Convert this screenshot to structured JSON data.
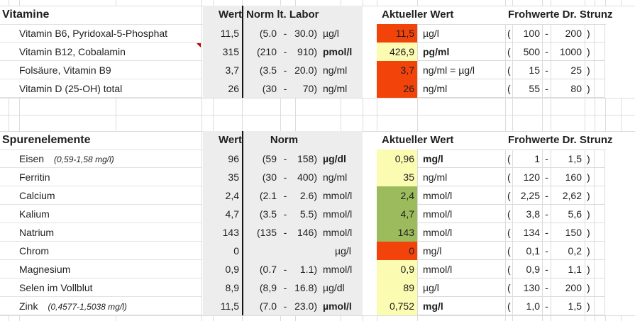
{
  "colors": {
    "red": "#f2430b",
    "yellow": "#fbfbb2",
    "green": "#9cbb5c",
    "comment_marker": "#bf0000",
    "flag_marker": "#1e7a1e",
    "band_gray": "#ededed"
  },
  "sections": [
    {
      "title": "Vitamine",
      "headers": {
        "wert": "Wert",
        "norm": "Norm lt. Labor",
        "aktuell": "Aktueller Wert",
        "froh": "Frohwerte Dr. Strunz"
      },
      "rows": [
        {
          "name": "Vitamin B6, Pyridoxal-5-Phosphat",
          "note": "",
          "wert": "11,5",
          "norm_low": "(5.0",
          "norm_dash": "-",
          "norm_high": "30.0)",
          "norm_unit": "µg/l",
          "norm_unit_bold": false,
          "aval": "11,5",
          "aval_bg": "red",
          "aval_flag": false,
          "aunit": "µg/l",
          "aunit_bold": false,
          "froh_open": "(",
          "froh_low": "100",
          "froh_dash": "-",
          "froh_high": "200",
          "froh_close": ")",
          "name_comment": false
        },
        {
          "name": "Vitamin B12, Cobalamin",
          "note": "",
          "wert": "315",
          "norm_low": "(210",
          "norm_dash": "-",
          "norm_high": "910)",
          "norm_unit": "pmol/l",
          "norm_unit_bold": true,
          "aval": "426,9",
          "aval_bg": "yellow",
          "aval_flag": true,
          "aunit": "pg/ml",
          "aunit_bold": true,
          "froh_open": "(",
          "froh_low": "500",
          "froh_dash": "-",
          "froh_high": "1000",
          "froh_close": ")",
          "name_comment": true
        },
        {
          "name": "Folsäure, Vitamin B9",
          "note": "",
          "wert": "3,7",
          "norm_low": "(3.5",
          "norm_dash": "-",
          "norm_high": "20.0)",
          "norm_unit": "ng/ml",
          "norm_unit_bold": false,
          "aval": "3,7",
          "aval_bg": "red",
          "aval_flag": false,
          "aunit": "ng/ml = µg/l",
          "aunit_bold": false,
          "froh_open": "(",
          "froh_low": "15",
          "froh_dash": "-",
          "froh_high": "25",
          "froh_close": ")",
          "name_comment": false
        },
        {
          "name": "Vitamin D (25-OH) total",
          "note": "",
          "wert": "26",
          "norm_low": "(30",
          "norm_dash": "-",
          "norm_high": "70)",
          "norm_unit": "ng/ml",
          "norm_unit_bold": false,
          "aval": "26",
          "aval_bg": "red",
          "aval_flag": false,
          "aunit": "ng/ml",
          "aunit_bold": false,
          "froh_open": "(",
          "froh_low": "55",
          "froh_dash": "-",
          "froh_high": "80",
          "froh_close": ")",
          "name_comment": false
        }
      ]
    },
    {
      "title": "Spurenelemente",
      "headers": {
        "wert": "Wert",
        "norm": "Norm",
        "aktuell": "Aktueller Wert",
        "froh": "Frohwerte Dr. Strunz"
      },
      "rows": [
        {
          "name": "Eisen",
          "note": "(0,59-1,58 mg/l)",
          "wert": "96",
          "norm_low": "(59",
          "norm_dash": "-",
          "norm_high": "158)",
          "norm_unit": "µg/dl",
          "norm_unit_bold": true,
          "aval": "0,96",
          "aval_bg": "yellow",
          "aval_flag": false,
          "aunit": "mg/l",
          "aunit_bold": true,
          "froh_open": "(",
          "froh_low": "1",
          "froh_dash": "-",
          "froh_high": "1,5",
          "froh_close": ")",
          "name_comment": false
        },
        {
          "name": "Ferritin",
          "note": "",
          "wert": "35",
          "norm_low": "(30",
          "norm_dash": "-",
          "norm_high": "400)",
          "norm_unit": "ng/ml",
          "norm_unit_bold": false,
          "aval": "35",
          "aval_bg": "yellow",
          "aval_flag": false,
          "aunit": "ng/ml",
          "aunit_bold": false,
          "froh_open": "(",
          "froh_low": "120",
          "froh_dash": "-",
          "froh_high": "160",
          "froh_close": ")",
          "name_comment": false
        },
        {
          "name": "Calcium",
          "note": "",
          "wert": "2,4",
          "norm_low": "(2.1",
          "norm_dash": "-",
          "norm_high": "2.6)",
          "norm_unit": "mmol/l",
          "norm_unit_bold": false,
          "aval": "2,4",
          "aval_bg": "green",
          "aval_flag": false,
          "aunit": "mmol/l",
          "aunit_bold": false,
          "froh_open": "(",
          "froh_low": "2,25",
          "froh_dash": "-",
          "froh_high": "2,62",
          "froh_close": ")",
          "name_comment": false
        },
        {
          "name": "Kalium",
          "note": "",
          "wert": "4,7",
          "norm_low": "(3.5",
          "norm_dash": "-",
          "norm_high": "5.5)",
          "norm_unit": "mmol/l",
          "norm_unit_bold": false,
          "aval": "4,7",
          "aval_bg": "green",
          "aval_flag": false,
          "aunit": "mmol/l",
          "aunit_bold": false,
          "froh_open": "(",
          "froh_low": "3,8",
          "froh_dash": "-",
          "froh_high": "5,6",
          "froh_close": ")",
          "name_comment": false
        },
        {
          "name": "Natrium",
          "note": "",
          "wert": "143",
          "norm_low": "(135",
          "norm_dash": "-",
          "norm_high": "146)",
          "norm_unit": "mmol/l",
          "norm_unit_bold": false,
          "aval": "143",
          "aval_bg": "green",
          "aval_flag": false,
          "aunit": "mmol/l",
          "aunit_bold": false,
          "froh_open": "(",
          "froh_low": "134",
          "froh_dash": "-",
          "froh_high": "150",
          "froh_close": ")",
          "name_comment": false
        },
        {
          "name": "Chrom",
          "note": "",
          "wert": "0",
          "norm_low": "",
          "norm_dash": "",
          "norm_high": "",
          "norm_unit": "µg/l",
          "norm_unit_bold": false,
          "aval": "0",
          "aval_bg": "red",
          "aval_flag": false,
          "aunit": "mg/l",
          "aunit_bold": false,
          "froh_open": "(",
          "froh_low": "0,1",
          "froh_dash": "-",
          "froh_high": "0,2",
          "froh_close": ")",
          "name_comment": false
        },
        {
          "name": "Magnesium",
          "note": "",
          "wert": "0,9",
          "norm_low": "(0.7",
          "norm_dash": "-",
          "norm_high": "1.1)",
          "norm_unit": "mmol/l",
          "norm_unit_bold": false,
          "aval": "0,9",
          "aval_bg": "yellow",
          "aval_flag": false,
          "aunit": "mmol/l",
          "aunit_bold": false,
          "froh_open": "(",
          "froh_low": "0,9",
          "froh_dash": "-",
          "froh_high": "1,1",
          "froh_close": ")",
          "name_comment": false
        },
        {
          "name": "Selen im Vollblut",
          "note": "",
          "wert": "8,9",
          "norm_low": "(8,9",
          "norm_dash": "-",
          "norm_high": "16.8)",
          "norm_unit": "µg/dl",
          "norm_unit_bold": false,
          "aval": "89",
          "aval_bg": "yellow",
          "aval_flag": false,
          "aunit": "µg/l",
          "aunit_bold": false,
          "froh_open": "(",
          "froh_low": "130",
          "froh_dash": "-",
          "froh_high": "200",
          "froh_close": ")",
          "name_comment": false
        },
        {
          "name": "Zink",
          "note": "(0,4577-1,5038 mg/l)",
          "wert": "11,5",
          "norm_low": "(7.0",
          "norm_dash": "-",
          "norm_high": "23.0)",
          "norm_unit": "µmol/l",
          "norm_unit_bold": true,
          "aval": "0,752",
          "aval_bg": "yellow",
          "aval_flag": false,
          "aunit": "mg/l",
          "aunit_bold": true,
          "froh_open": "(",
          "froh_low": "1,0",
          "froh_dash": "-",
          "froh_high": "1,5",
          "froh_close": ")",
          "name_comment": false
        }
      ]
    }
  ]
}
